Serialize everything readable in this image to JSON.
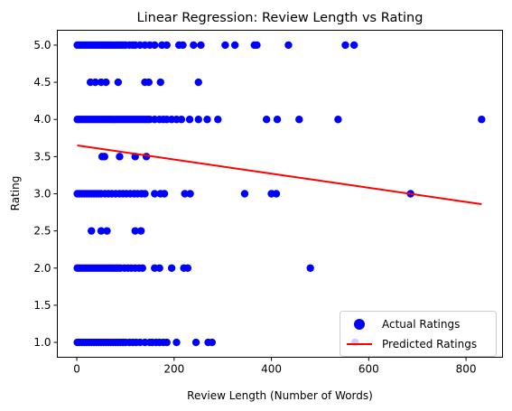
{
  "chart_data": {
    "type": "scatter",
    "title": "Linear Regression: Review Length vs Rating",
    "xlabel": "Review Length (Number of Words)",
    "ylabel": "Rating",
    "xlim": [
      -40,
      875
    ],
    "ylim": [
      0.8,
      5.2
    ],
    "x_ticks": [
      0,
      200,
      400,
      600,
      800
    ],
    "y_ticks": [
      1.0,
      1.5,
      2.0,
      2.5,
      3.0,
      3.5,
      4.0,
      4.5,
      5.0
    ],
    "x_tick_labels": [
      "0",
      "200",
      "400",
      "600",
      "800"
    ],
    "y_tick_labels": [
      "1.0",
      "1.5",
      "2.0",
      "2.5",
      "3.0",
      "3.5",
      "4.0",
      "4.5",
      "5.0"
    ],
    "grid": false,
    "legend_position": "lower right",
    "series": [
      {
        "name": "Actual Ratings",
        "kind": "scatter",
        "color": "#0000ff",
        "points": [
          [
            1,
            5
          ],
          [
            5,
            5
          ],
          [
            10,
            5
          ],
          [
            15,
            5
          ],
          [
            20,
            5
          ],
          [
            25,
            5
          ],
          [
            30,
            5
          ],
          [
            35,
            5
          ],
          [
            40,
            5
          ],
          [
            45,
            5
          ],
          [
            50,
            5
          ],
          [
            55,
            5
          ],
          [
            60,
            5
          ],
          [
            65,
            5
          ],
          [
            70,
            5
          ],
          [
            75,
            5
          ],
          [
            80,
            5
          ],
          [
            85,
            5
          ],
          [
            90,
            5
          ],
          [
            95,
            5
          ],
          [
            100,
            5
          ],
          [
            108,
            5
          ],
          [
            115,
            5
          ],
          [
            120,
            5
          ],
          [
            130,
            5
          ],
          [
            140,
            5
          ],
          [
            150,
            5
          ],
          [
            160,
            5
          ],
          [
            175,
            5
          ],
          [
            185,
            5
          ],
          [
            210,
            5
          ],
          [
            218,
            5
          ],
          [
            240,
            5
          ],
          [
            255,
            5
          ],
          [
            305,
            5
          ],
          [
            325,
            5
          ],
          [
            365,
            5
          ],
          [
            370,
            5
          ],
          [
            435,
            5
          ],
          [
            552,
            5
          ],
          [
            570,
            5
          ],
          [
            28,
            4.5
          ],
          [
            38,
            4.5
          ],
          [
            50,
            4.5
          ],
          [
            60,
            4.5
          ],
          [
            85,
            4.5
          ],
          [
            140,
            4.5
          ],
          [
            148,
            4.5
          ],
          [
            172,
            4.5
          ],
          [
            250,
            4.5
          ],
          [
            1,
            4
          ],
          [
            5,
            4
          ],
          [
            10,
            4
          ],
          [
            15,
            4
          ],
          [
            20,
            4
          ],
          [
            25,
            4
          ],
          [
            30,
            4
          ],
          [
            35,
            4
          ],
          [
            40,
            4
          ],
          [
            45,
            4
          ],
          [
            50,
            4
          ],
          [
            55,
            4
          ],
          [
            60,
            4
          ],
          [
            65,
            4
          ],
          [
            70,
            4
          ],
          [
            75,
            4
          ],
          [
            80,
            4
          ],
          [
            85,
            4
          ],
          [
            90,
            4
          ],
          [
            95,
            4
          ],
          [
            100,
            4
          ],
          [
            105,
            4
          ],
          [
            110,
            4
          ],
          [
            115,
            4
          ],
          [
            120,
            4
          ],
          [
            125,
            4
          ],
          [
            130,
            4
          ],
          [
            135,
            4
          ],
          [
            140,
            4
          ],
          [
            145,
            4
          ],
          [
            150,
            4
          ],
          [
            160,
            4
          ],
          [
            170,
            4
          ],
          [
            178,
            4
          ],
          [
            185,
            4
          ],
          [
            195,
            4
          ],
          [
            205,
            4
          ],
          [
            215,
            4
          ],
          [
            232,
            4
          ],
          [
            250,
            4
          ],
          [
            268,
            4
          ],
          [
            290,
            4
          ],
          [
            390,
            4
          ],
          [
            412,
            4
          ],
          [
            457,
            4
          ],
          [
            537,
            4
          ],
          [
            832,
            4
          ],
          [
            52,
            3.5
          ],
          [
            57,
            3.5
          ],
          [
            88,
            3.5
          ],
          [
            120,
            3.5
          ],
          [
            143,
            3.5
          ],
          [
            1,
            3
          ],
          [
            5,
            3
          ],
          [
            10,
            3
          ],
          [
            15,
            3
          ],
          [
            20,
            3
          ],
          [
            25,
            3
          ],
          [
            30,
            3
          ],
          [
            35,
            3
          ],
          [
            40,
            3
          ],
          [
            45,
            3
          ],
          [
            50,
            3
          ],
          [
            58,
            3
          ],
          [
            65,
            3
          ],
          [
            72,
            3
          ],
          [
            80,
            3
          ],
          [
            88,
            3
          ],
          [
            95,
            3
          ],
          [
            102,
            3
          ],
          [
            110,
            3
          ],
          [
            118,
            3
          ],
          [
            125,
            3
          ],
          [
            133,
            3
          ],
          [
            140,
            3
          ],
          [
            160,
            3
          ],
          [
            172,
            3
          ],
          [
            180,
            3
          ],
          [
            222,
            3
          ],
          [
            233,
            3
          ],
          [
            345,
            3
          ],
          [
            400,
            3
          ],
          [
            410,
            3
          ],
          [
            686,
            3
          ],
          [
            30,
            2.5
          ],
          [
            50,
            2.5
          ],
          [
            62,
            2.5
          ],
          [
            120,
            2.5
          ],
          [
            132,
            2.5
          ],
          [
            1,
            2
          ],
          [
            5,
            2
          ],
          [
            10,
            2
          ],
          [
            15,
            2
          ],
          [
            20,
            2
          ],
          [
            25,
            2
          ],
          [
            30,
            2
          ],
          [
            35,
            2
          ],
          [
            40,
            2
          ],
          [
            45,
            2
          ],
          [
            50,
            2
          ],
          [
            55,
            2
          ],
          [
            60,
            2
          ],
          [
            65,
            2
          ],
          [
            70,
            2
          ],
          [
            75,
            2
          ],
          [
            80,
            2
          ],
          [
            85,
            2
          ],
          [
            90,
            2
          ],
          [
            98,
            2
          ],
          [
            105,
            2
          ],
          [
            112,
            2
          ],
          [
            120,
            2
          ],
          [
            128,
            2
          ],
          [
            135,
            2
          ],
          [
            160,
            2
          ],
          [
            170,
            2
          ],
          [
            195,
            2
          ],
          [
            220,
            2
          ],
          [
            228,
            2
          ],
          [
            480,
            2
          ],
          [
            1,
            1
          ],
          [
            5,
            1
          ],
          [
            10,
            1
          ],
          [
            15,
            1
          ],
          [
            20,
            1
          ],
          [
            25,
            1
          ],
          [
            30,
            1
          ],
          [
            35,
            1
          ],
          [
            40,
            1
          ],
          [
            45,
            1
          ],
          [
            50,
            1
          ],
          [
            55,
            1
          ],
          [
            60,
            1
          ],
          [
            65,
            1
          ],
          [
            70,
            1
          ],
          [
            75,
            1
          ],
          [
            80,
            1
          ],
          [
            85,
            1
          ],
          [
            90,
            1
          ],
          [
            95,
            1
          ],
          [
            100,
            1
          ],
          [
            108,
            1
          ],
          [
            115,
            1
          ],
          [
            122,
            1
          ],
          [
            130,
            1
          ],
          [
            140,
            1
          ],
          [
            150,
            1
          ],
          [
            155,
            1
          ],
          [
            163,
            1
          ],
          [
            170,
            1
          ],
          [
            178,
            1
          ],
          [
            185,
            1
          ],
          [
            205,
            1
          ],
          [
            245,
            1
          ],
          [
            270,
            1
          ],
          [
            278,
            1
          ],
          [
            572,
            1
          ]
        ]
      },
      {
        "name": "Predicted Ratings",
        "kind": "line",
        "color": "#ff0000",
        "points": [
          [
            1,
            3.65
          ],
          [
            832,
            2.86
          ]
        ]
      }
    ]
  }
}
